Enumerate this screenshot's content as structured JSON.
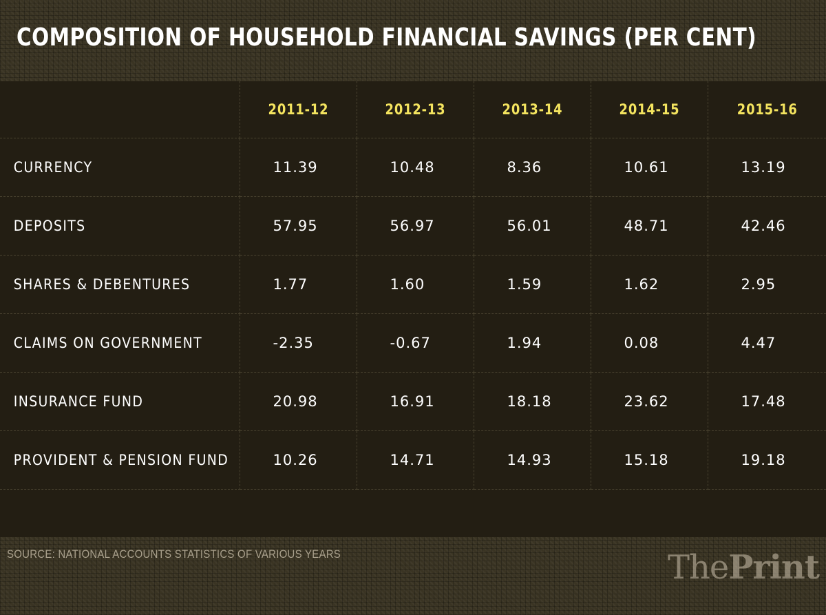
{
  "title": "COMPOSITION OF HOUSEHOLD FINANCIAL SAVINGS (PER CENT)",
  "source": "SOURCE: NATIONAL ACCOUNTS STATISTICS OF VARIOUS YEARS",
  "brand": {
    "part1": "The",
    "part2": "Print"
  },
  "colors": {
    "header_year": "#f4e45f",
    "text": "#ffffff",
    "panel": "#231e13",
    "background": "#3a3423"
  },
  "chart_data": {
    "type": "table",
    "title": "COMPOSITION OF HOUSEHOLD FINANCIAL SAVINGS (PER CENT)",
    "columns": [
      "2011-12",
      "2012-13",
      "2013-14",
      "2014-15",
      "2015-16"
    ],
    "rows": [
      {
        "label": "CURRENCY",
        "values": [
          "11.39",
          "10.48",
          "8.36",
          "10.61",
          "13.19"
        ]
      },
      {
        "label": "DEPOSITS",
        "values": [
          "57.95",
          "56.97",
          "56.01",
          "48.71",
          "42.46"
        ]
      },
      {
        "label": "SHARES & DEBENTURES",
        "values": [
          "1.77",
          "1.60",
          "1.59",
          "1.62",
          "2.95"
        ]
      },
      {
        "label": "CLAIMS ON GOVERNMENT",
        "values": [
          "-2.35",
          "-0.67",
          "1.94",
          "0.08",
          "4.47"
        ]
      },
      {
        "label": "INSURANCE FUND",
        "values": [
          "20.98",
          "16.91",
          "18.18",
          "23.62",
          "17.48"
        ]
      },
      {
        "label": "PROVIDENT & PENSION FUND",
        "values": [
          "10.26",
          "14.71",
          "14.93",
          "15.18",
          "19.18"
        ]
      }
    ]
  }
}
